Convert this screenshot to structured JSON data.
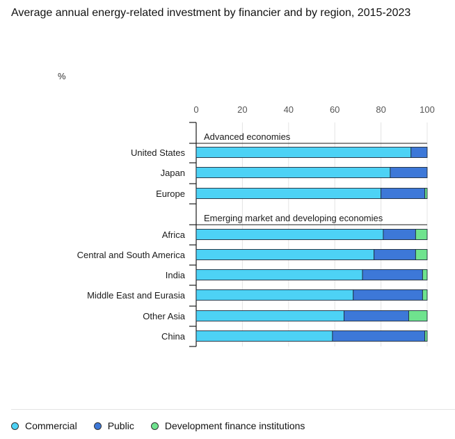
{
  "chart_data": {
    "type": "bar",
    "orientation": "horizontal",
    "stacked": true,
    "title": "Average annual energy-related investment by financier and by region, 2015-2023",
    "unit_label": "%",
    "xlim": [
      0,
      100
    ],
    "xticks": [
      0,
      20,
      40,
      60,
      80,
      100
    ],
    "groups": [
      {
        "label": "Advanced economies",
        "categories": [
          "United States",
          "Japan",
          "Europe"
        ]
      },
      {
        "label": "Emerging market and developing economies",
        "categories": [
          "Africa",
          "Central and South America",
          "India",
          "Middle East and Eurasia",
          "Other Asia",
          "China"
        ]
      }
    ],
    "categories": [
      "United States",
      "Japan",
      "Europe",
      "Africa",
      "Central and South America",
      "India",
      "Middle East and Eurasia",
      "Other Asia",
      "China"
    ],
    "series": [
      {
        "name": "Commercial",
        "color": "#4dd2f5",
        "values": [
          93,
          84,
          80,
          81,
          77,
          72,
          68,
          64,
          59
        ]
      },
      {
        "name": "Public",
        "color": "#3d78d8",
        "values": [
          7,
          16,
          19,
          14,
          18,
          26,
          30,
          28,
          40
        ]
      },
      {
        "name": "Development finance institutions",
        "color": "#6fe38e",
        "values": [
          0,
          0,
          1,
          5,
          5,
          2,
          2,
          8,
          1
        ]
      }
    ],
    "grid": true,
    "legend_position": "bottom-left"
  }
}
